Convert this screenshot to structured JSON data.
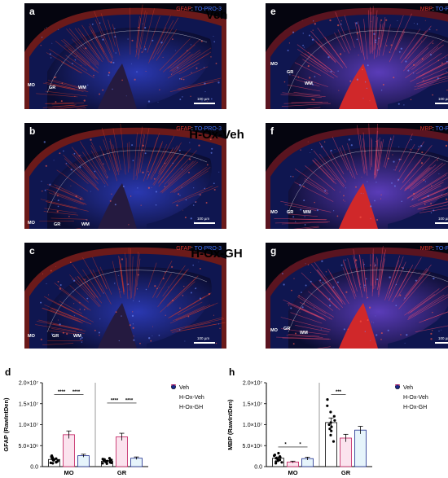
{
  "panels": [
    {
      "label": "a",
      "stain_red": "GFAP",
      "stain_blue": "TO-PRO-3",
      "regions": [
        "MO",
        "GR",
        "WM"
      ],
      "scale": "100 µm",
      "kind": "gfap"
    },
    {
      "label": "b",
      "stain_red": "GFAP",
      "stain_blue": "TO-PRO-3",
      "regions": [
        "MO",
        "GR",
        "WM"
      ],
      "scale": "100 µm",
      "kind": "gfap"
    },
    {
      "label": "c",
      "stain_red": "GFAP",
      "stain_blue": "TO-PRO-3",
      "regions": [
        "MO",
        "GR",
        "WM"
      ],
      "scale": "100 µm",
      "kind": "gfap"
    },
    {
      "label": "e",
      "stain_red": "MBP",
      "stain_blue": "TO-PRO-3",
      "regions": [
        "MO",
        "GR",
        "WM"
      ],
      "scale": "100 µm",
      "kind": "mbp"
    },
    {
      "label": "f",
      "stain_red": "MBP",
      "stain_blue": "TO-PRO-3",
      "regions": [
        "MO",
        "GR",
        "WM"
      ],
      "scale": "100 µm",
      "kind": "mbp"
    },
    {
      "label": "g",
      "stain_red": "MBP",
      "stain_blue": "TO-PRO-3",
      "regions": [
        "MO",
        "GR",
        "WM"
      ],
      "scale": "100 µm",
      "kind": "mbp"
    }
  ],
  "group_labels": [
    "Veh",
    "H-Ox-Veh",
    "H-Ox-GH"
  ],
  "stain_separator": ": ",
  "legend": [
    {
      "name": "Veh",
      "symbol": "circle",
      "color": "#000000"
    },
    {
      "name": "H-Ox-Veh",
      "symbol": "triangle-down",
      "color": "#c0185a"
    },
    {
      "name": "H-Ox-GH",
      "symbol": "diamond",
      "color": "#1a2a8c"
    }
  ],
  "chart_data": [
    {
      "label": "d",
      "type": "bar",
      "ylabel": "GFAP (RawIntDen)",
      "yticks": [
        "0.0",
        "5.0×10⁶",
        "1.0×10⁷",
        "1.5×10⁷",
        "2.0×10⁷"
      ],
      "ylim": [
        0,
        20000000
      ],
      "categories": [
        "MO",
        "GR"
      ],
      "series": [
        {
          "name": "Veh",
          "values": [
            1700000,
            1300000
          ],
          "errors": [
            250000,
            200000
          ],
          "points": [
            [
              900000,
              1200000,
              1500000,
              2000000,
              2400000,
              1700000,
              1100000,
              800000,
              2600000,
              1400000,
              1900000,
              1600000,
              2200000,
              1000000
            ],
            [
              700000,
              900000,
              1300000,
              1600000,
              1800000,
              1100000,
              1400000,
              1000000,
              2000000,
              1200000,
              1500000,
              1700000,
              800000,
              1300000
            ]
          ]
        },
        {
          "name": "H-Ox-Veh",
          "values": [
            7600000,
            7100000
          ],
          "errors": [
            900000,
            850000
          ],
          "points": [
            [
              3500000,
              5000000,
              6000000,
              6800000,
              7500000,
              8200000,
              9000000,
              10000000,
              11500000,
              13000000,
              16000000,
              4200000,
              7000000,
              8800000,
              6400000
            ],
            [
              3000000,
              4500000,
              5500000,
              6500000,
              7200000,
              8000000,
              9200000,
              11000000,
              12500000,
              14000000,
              4000000,
              6000000,
              7800000,
              8500000,
              5200000
            ]
          ]
        },
        {
          "name": "H-Ox-GH",
          "values": [
            2600000,
            2000000
          ],
          "errors": [
            350000,
            300000
          ],
          "points": [
            [
              1000000,
              1500000,
              2000000,
              2500000,
              3000000,
              3500000,
              4000000,
              1800000,
              2800000,
              2200000,
              3200000,
              1300000,
              4500000,
              2400000
            ],
            [
              800000,
              1200000,
              1600000,
              2000000,
              2400000,
              2800000,
              3200000,
              1400000,
              2200000,
              1800000,
              2600000,
              1000000,
              3600000,
              2000000
            ]
          ]
        }
      ],
      "significance": [
        {
          "category": "MO",
          "from": 0,
          "to": 1,
          "label": "****"
        },
        {
          "category": "MO",
          "from": 1,
          "to": 2,
          "label": "****"
        },
        {
          "category": "GR",
          "from": 0,
          "to": 1,
          "label": "****"
        },
        {
          "category": "GR",
          "from": 1,
          "to": 2,
          "label": "****"
        }
      ],
      "legend_position": "right"
    },
    {
      "label": "h",
      "type": "bar",
      "ylabel": "MBP (RawIntDen)",
      "yticks": [
        "0.0",
        "5.0×10⁶",
        "1.0×10⁷",
        "1.5×10⁷",
        "2.0×10⁷"
      ],
      "ylim": [
        0,
        20000000
      ],
      "categories": [
        "MO",
        "GR"
      ],
      "series": [
        {
          "name": "Veh",
          "values": [
            2000000,
            10500000
          ],
          "errors": [
            300000,
            1100000
          ],
          "points": [
            [
              800000,
              1200000,
              1600000,
              2000000,
              2400000,
              2800000,
              3200000,
              1400000,
              2200000,
              1800000,
              2600000,
              1000000
            ],
            [
              6000000,
              7500000,
              8500000,
              9500000,
              10000000,
              11000000,
              12000000,
              13000000,
              14500000,
              16000000,
              9000000,
              10500000
            ]
          ]
        },
        {
          "name": "H-Ox-Veh",
          "values": [
            1100000,
            6800000
          ],
          "errors": [
            200000,
            900000
          ],
          "points": [
            [
              500000,
              800000,
              1000000,
              1200000,
              1400000,
              1600000,
              900000,
              1300000,
              700000
            ],
            [
              3000000,
              4000000,
              5000000,
              6000000,
              7000000,
              8000000,
              9000000,
              10500000,
              12000000,
              6500000
            ]
          ]
        },
        {
          "name": "H-Ox-GH",
          "values": [
            1900000,
            8700000
          ],
          "errors": [
            350000,
            900000
          ],
          "points": [
            [
              600000,
              1000000,
              1500000,
              2000000,
              2500000,
              3000000,
              3500000,
              1200000,
              2200000,
              1800000
            ],
            [
              5500000,
              6500000,
              7500000,
              8500000,
              9500000,
              10500000,
              12000000,
              13000000,
              8000000,
              9000000
            ]
          ]
        }
      ],
      "significance": [
        {
          "category": "MO",
          "from": 0,
          "to": 1,
          "label": "*"
        },
        {
          "category": "MO",
          "from": 1,
          "to": 2,
          "label": "*"
        },
        {
          "category": "GR",
          "from": 0,
          "to": 1,
          "label": "***"
        }
      ],
      "legend_position": "right"
    }
  ]
}
